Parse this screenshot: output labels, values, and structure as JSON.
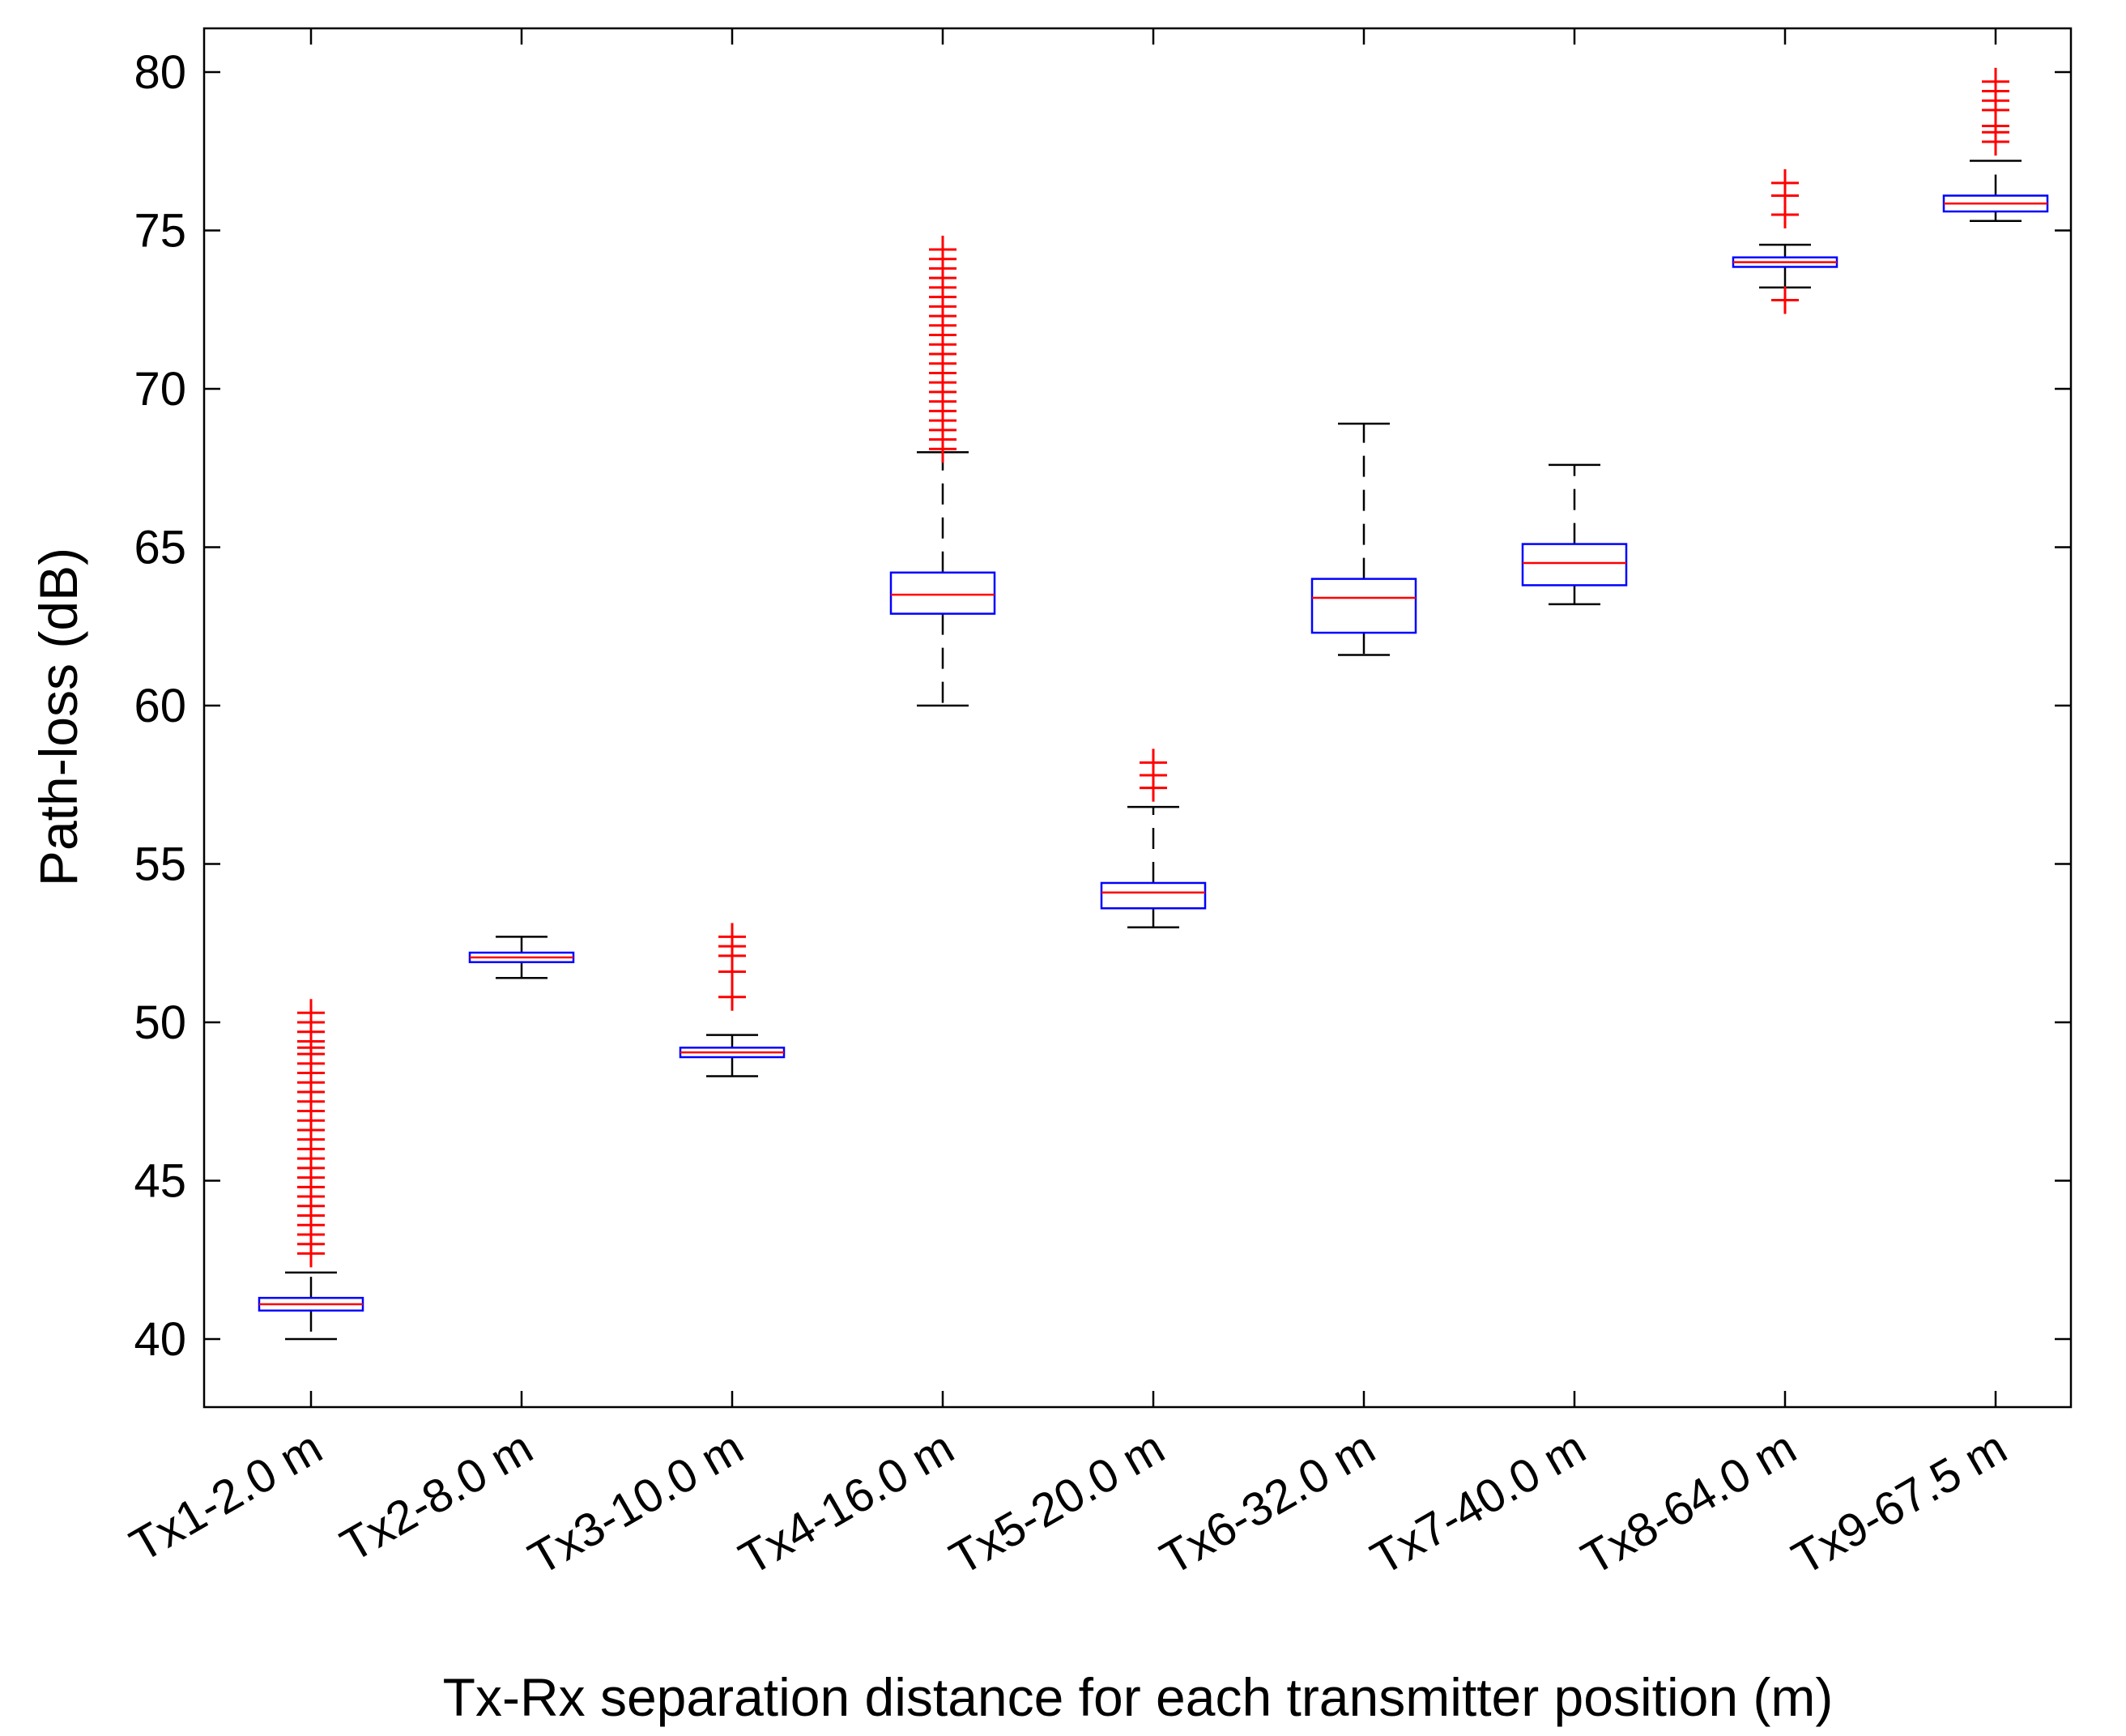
{
  "chart_data": {
    "type": "boxplot",
    "title": "",
    "xlabel": "Tx-Rx separation distance for each transmitter position (m)",
    "ylabel": "Path-loss (dB)",
    "ylim": [
      38,
      81
    ],
    "yticks": [
      40,
      45,
      50,
      55,
      60,
      65,
      70,
      75,
      80
    ],
    "grid": false,
    "colors": {
      "box": "#0000ff",
      "median": "#ff0000",
      "whisker": "#000000",
      "outlier": "#ff0000",
      "axis": "#000000"
    },
    "categories": [
      "Tx1-2.0 m",
      "Tx2-8.0 m",
      "Tx3-10.0 m",
      "Tx4-16.0 m",
      "Tx5-20.0 m",
      "Tx6-32.0 m",
      "Tx7-40.0 m",
      "Tx8-64.0 m",
      "Tx9-67.5 m"
    ],
    "boxes": [
      {
        "label": "Tx1-2.0 m",
        "whisker_low": 40.0,
        "q1": 40.9,
        "median": 41.1,
        "q3": 41.3,
        "whisker_high": 42.1,
        "outliers": [
          42.7,
          43.0,
          43.3,
          43.6,
          43.9,
          44.2,
          44.5,
          44.8,
          45.1,
          45.4,
          45.7,
          46.0,
          46.3,
          46.6,
          46.9,
          47.2,
          47.5,
          47.8,
          48.1,
          48.4,
          48.7,
          49.0,
          49.2,
          49.4,
          49.7,
          50.0,
          50.3
        ]
      },
      {
        "label": "Tx2-8.0 m",
        "whisker_low": 51.4,
        "q1": 51.9,
        "median": 52.05,
        "q3": 52.2,
        "whisker_high": 52.7,
        "outliers": []
      },
      {
        "label": "Tx3-10.0 m",
        "whisker_low": 48.3,
        "q1": 48.9,
        "median": 49.05,
        "q3": 49.2,
        "whisker_high": 49.6,
        "outliers": [
          50.8,
          51.6,
          52.1,
          52.4,
          52.7
        ]
      },
      {
        "label": "Tx4-16.0 m",
        "whisker_low": 60.0,
        "q1": 62.9,
        "median": 63.5,
        "q3": 64.2,
        "whisker_high": 68.0,
        "outliers": [
          68.1,
          68.4,
          68.7,
          69.0,
          69.3,
          69.6,
          69.9,
          70.2,
          70.5,
          70.8,
          71.1,
          71.4,
          71.7,
          72.0,
          72.3,
          72.6,
          72.9,
          73.2,
          73.5,
          73.8,
          74.1,
          74.4
        ]
      },
      {
        "label": "Tx5-20.0 m",
        "whisker_low": 53.0,
        "q1": 53.6,
        "median": 54.1,
        "q3": 54.4,
        "whisker_high": 56.8,
        "outliers": [
          57.4,
          57.8,
          58.2
        ]
      },
      {
        "label": "Tx6-32.0 m",
        "whisker_low": 61.6,
        "q1": 62.3,
        "median": 63.4,
        "q3": 64.0,
        "whisker_high": 68.9,
        "outliers": []
      },
      {
        "label": "Tx7-40.0 m",
        "whisker_low": 63.2,
        "q1": 63.8,
        "median": 64.5,
        "q3": 65.1,
        "whisker_high": 67.6,
        "outliers": []
      },
      {
        "label": "Tx8-64.0 m",
        "whisker_low": 73.2,
        "q1": 73.85,
        "median": 74.0,
        "q3": 74.15,
        "whisker_high": 74.55,
        "outliers": [
          72.8,
          75.5,
          76.1,
          76.5
        ]
      },
      {
        "label": "Tx9-67.5 m",
        "whisker_low": 75.3,
        "q1": 75.6,
        "median": 75.85,
        "q3": 76.1,
        "whisker_high": 77.2,
        "outliers": [
          77.8,
          78.1,
          78.3,
          78.8,
          79.1,
          79.4,
          79.7
        ]
      }
    ]
  }
}
